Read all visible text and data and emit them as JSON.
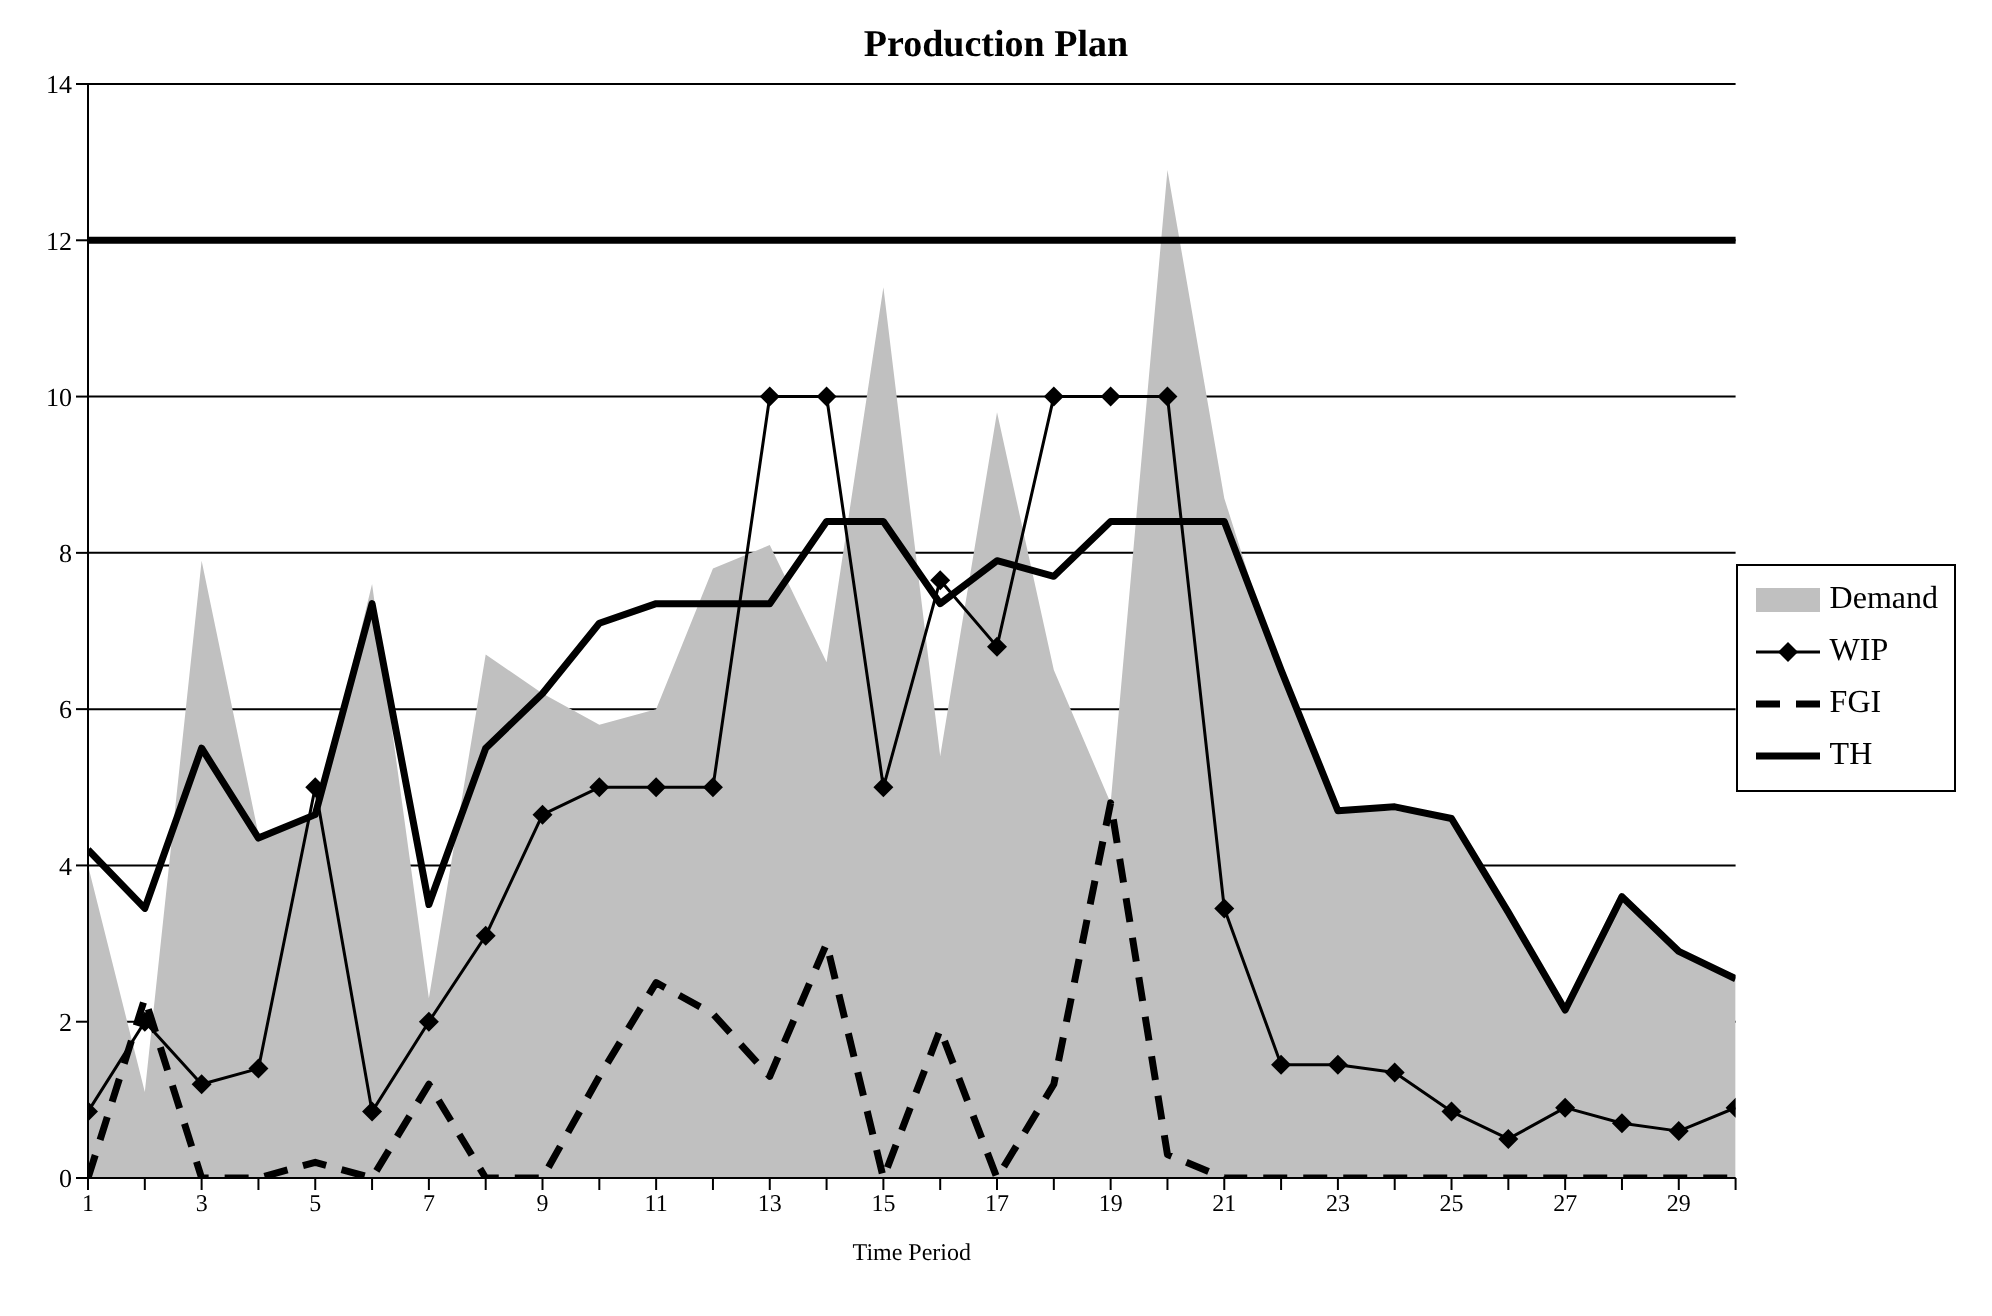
{
  "chart_data": {
    "type": "line",
    "title": "Production Plan",
    "xlabel": "Time Period",
    "x": [
      1,
      2,
      3,
      4,
      5,
      6,
      7,
      8,
      9,
      10,
      11,
      12,
      13,
      14,
      15,
      16,
      17,
      18,
      19,
      20,
      21,
      22,
      23,
      24,
      25,
      26,
      27,
      28,
      29,
      30
    ],
    "series": [
      {
        "name": "Demand",
        "type": "area",
        "color": "#c0c0c0",
        "values": [
          4.0,
          1.1,
          7.9,
          4.4,
          4.6,
          7.6,
          2.3,
          6.7,
          6.2,
          5.8,
          6.0,
          7.8,
          8.1,
          6.6,
          11.4,
          5.4,
          9.8,
          6.5,
          4.8,
          12.9,
          8.7,
          6.4,
          4.7,
          4.7,
          4.6,
          3.4,
          2.2,
          3.6,
          2.9,
          2.6
        ]
      },
      {
        "name": "WIP",
        "color": "#000000",
        "marker": "diamond",
        "line_style": "solid",
        "values": [
          0.85,
          2.0,
          1.2,
          1.4,
          5.0,
          0.85,
          2.0,
          3.1,
          4.65,
          5.0,
          5.0,
          5.0,
          10,
          10,
          5.0,
          7.65,
          6.8,
          10,
          10,
          10,
          3.45,
          1.45,
          1.45,
          1.35,
          0.85,
          0.5,
          0.9,
          0.7,
          0.6,
          0.9
        ]
      },
      {
        "name": "FGI",
        "color": "#000000",
        "marker": "none",
        "line_style": "dashed",
        "values": [
          0,
          2.3,
          0,
          0,
          0.2,
          0,
          1.2,
          0,
          0,
          1.3,
          2.5,
          2.1,
          1.3,
          3.0,
          0,
          1.9,
          0,
          1.2,
          4.8,
          0.3,
          0,
          0,
          0,
          0,
          0,
          0,
          0,
          0,
          0,
          0
        ]
      },
      {
        "name": "TH",
        "color": "#000000",
        "marker": "none",
        "line_style": "solid",
        "values": [
          4.2,
          3.45,
          5.5,
          4.35,
          4.65,
          7.35,
          3.5,
          5.5,
          6.2,
          7.1,
          7.35,
          7.35,
          7.35,
          8.4,
          8.4,
          7.35,
          7.9,
          7.7,
          8.4,
          8.4,
          8.4,
          6.5,
          4.7,
          4.75,
          4.6,
          3.4,
          2.15,
          3.6,
          2.9,
          2.55
        ]
      }
    ],
    "xlim": [
      1,
      30
    ],
    "xticks": [
      1,
      {
        "value": 2,
        "label": null
      },
      3,
      {
        "value": 4,
        "label": null
      },
      5,
      {
        "value": 6,
        "label": null
      },
      7,
      {
        "value": 8,
        "label": null
      },
      9,
      {
        "value": 10,
        "label": null
      },
      11,
      {
        "value": 12,
        "label": null
      },
      13,
      {
        "value": 14,
        "label": null
      },
      15,
      {
        "value": 16,
        "label": null
      },
      17,
      {
        "value": 18,
        "label": null
      },
      19,
      {
        "value": 20,
        "label": null
      },
      21,
      {
        "value": 22,
        "label": null
      },
      23,
      {
        "value": 24,
        "label": null
      },
      25,
      {
        "value": 26,
        "label": null
      },
      27,
      {
        "value": 28,
        "label": null
      },
      29,
      {
        "value": 30,
        "label": null
      }
    ],
    "ylim": [
      0,
      14
    ],
    "yticks": [
      0,
      2,
      4,
      6,
      8,
      10,
      12,
      14
    ],
    "grid": "y",
    "legend": "right",
    "ref_lines": [
      {
        "axis": "y",
        "value": 12,
        "color": "#000000"
      }
    ]
  }
}
